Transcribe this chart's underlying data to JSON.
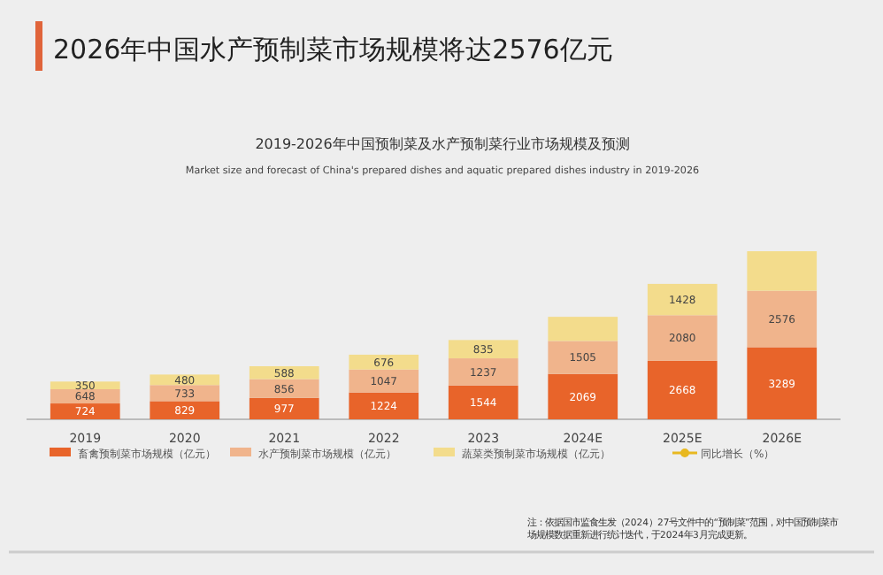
{
  "chart_data": {
    "type": "bar",
    "stacked": true,
    "title": "2026年中国水产预制菜市场规模将达2576亿元",
    "subtitle": "2019-2026年中国预制菜及水产预制菜行业市场规模及预测\nMarket size and forecast of China's prepared dishes and aquatic prepared dishes industry in 2019-2026",
    "categories": [
      "2019",
      "2020",
      "2021",
      "2022",
      "2023",
      "2024E",
      "2025E",
      "2026E"
    ],
    "series": [
      {
        "name": "畜禽预制菜市场规模（亿元）",
        "color": "#e8642a",
        "values": [
          724,
          829,
          977,
          1224,
          1544,
          2069,
          2668,
          3289
        ],
        "value_labels": [
          "724",
          "829",
          "977",
          "1224",
          "1544",
          "2069",
          "2668",
          "3289"
        ]
      },
      {
        "name": "水产预制菜市场规模（亿元）",
        "color": "#f0b48c",
        "values": [
          648,
          733,
          856,
          1047,
          1237,
          1505,
          2080,
          2576
        ],
        "value_labels": [
          "648",
          "733",
          "856",
          "1047",
          "1237",
          "1505",
          "2080",
          "2576"
        ]
      },
      {
        "name": "蔬菜类预制菜市场规模（亿元）",
        "color": "#f3dc8c",
        "values": [
          350,
          480,
          588,
          676,
          835,
          1100,
          1428,
          1800
        ],
        "value_labels": [
          "350",
          "480",
          "588",
          "676",
          "835",
          null,
          "1428",
          null
        ]
      },
      {
        "name": "同比增长（%）",
        "type": "line",
        "color": "#e8b820",
        "marker": "circle",
        "values": [
          null,
          null,
          null,
          null,
          null,
          null,
          null,
          null
        ]
      }
    ],
    "legend": "bottom",
    "annotations": [
      "注：依据国市监食生发（2024）27号文件中的“预制菜”范围，对中国预制菜市场规模数据重新进行统计迭代，于2024年3月完成更新。"
    ]
  }
}
